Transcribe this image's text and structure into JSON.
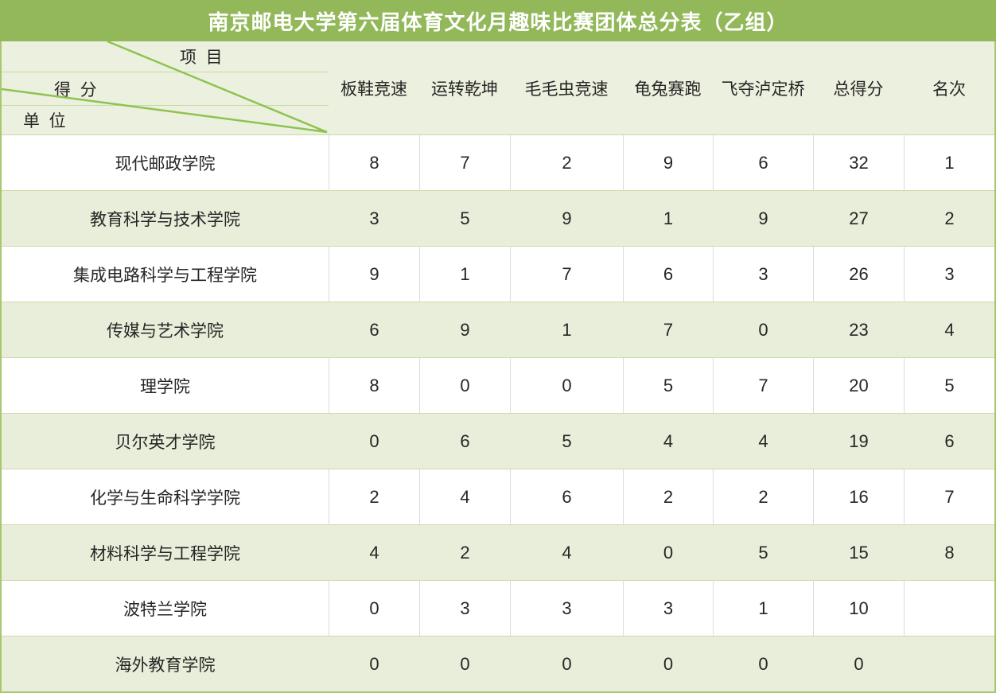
{
  "title": "南京邮电大学第六届体育文化月趣味比赛团体总分表（乙组）",
  "header_row": {
    "corner": {
      "top": "项  目",
      "middle": "得  分",
      "bottom": "单  位"
    },
    "columns": [
      "板鞋竞速",
      "运转乾坤",
      "毛毛虫竞速",
      "龟兔赛跑",
      "飞夺泸定桥",
      "总得分",
      "名次"
    ]
  },
  "body": {
    "rows": [
      {
        "unit": "现代邮政学院",
        "values": [
          "8",
          "7",
          "2",
          "9",
          "6",
          "32",
          "1"
        ]
      },
      {
        "unit": "教育科学与技术学院",
        "values": [
          "3",
          "5",
          "9",
          "1",
          "9",
          "27",
          "2"
        ]
      },
      {
        "unit": "集成电路科学与工程学院",
        "values": [
          "9",
          "1",
          "7",
          "6",
          "3",
          "26",
          "3"
        ]
      },
      {
        "unit": "传媒与艺术学院",
        "values": [
          "6",
          "9",
          "1",
          "7",
          "0",
          "23",
          "4"
        ]
      },
      {
        "unit": "理学院",
        "values": [
          "8",
          "0",
          "0",
          "5",
          "7",
          "20",
          "5"
        ]
      },
      {
        "unit": "贝尔英才学院",
        "values": [
          "0",
          "6",
          "5",
          "4",
          "4",
          "19",
          "6"
        ]
      },
      {
        "unit": "化学与生命科学学院",
        "values": [
          "2",
          "4",
          "6",
          "2",
          "2",
          "16",
          "7"
        ]
      },
      {
        "unit": "材料科学与工程学院",
        "values": [
          "4",
          "2",
          "4",
          "0",
          "5",
          "15",
          "8"
        ]
      },
      {
        "unit": "波特兰学院",
        "values": [
          "0",
          "3",
          "3",
          "3",
          "1",
          "10",
          ""
        ]
      },
      {
        "unit": "海外教育学院",
        "values": [
          "0",
          "0",
          "0",
          "0",
          "0",
          "0",
          ""
        ]
      }
    ]
  },
  "colors": {
    "title_bar_bg": "#92B859",
    "title_text": "#FFFFFF",
    "header_bg": "#ECF0DF",
    "alt_row_bg": "#E9EEDA",
    "outer_border": "#A6C870",
    "diagonal_line": "#8FC351",
    "row_divider": "#CBDCA6",
    "column_divider": "#DCDCDC",
    "text": "#262626"
  },
  "chart_data": {
    "type": "table",
    "title": "南京邮电大学第六届体育文化月趣味比赛团体总分表（乙组）",
    "corner_labels": {
      "columns_axis": "项 目",
      "value_axis": "得 分",
      "rows_axis": "单 位"
    },
    "columns": [
      "单位",
      "板鞋竞速",
      "运转乾坤",
      "毛毛虫竞速",
      "龟兔赛跑",
      "飞夺泸定桥",
      "总得分",
      "名次"
    ],
    "rows": [
      [
        "现代邮政学院",
        8,
        7,
        2,
        9,
        6,
        32,
        "1"
      ],
      [
        "教育科学与技术学院",
        3,
        5,
        9,
        1,
        9,
        27,
        "2"
      ],
      [
        "集成电路科学与工程学院",
        9,
        1,
        7,
        6,
        3,
        26,
        "3"
      ],
      [
        "传媒与艺术学院",
        6,
        9,
        1,
        7,
        0,
        23,
        "4"
      ],
      [
        "理学院",
        8,
        0,
        0,
        5,
        7,
        20,
        "5"
      ],
      [
        "贝尔英才学院",
        0,
        6,
        5,
        4,
        4,
        19,
        "6"
      ],
      [
        "化学与生命科学学院",
        2,
        4,
        6,
        2,
        2,
        16,
        "7"
      ],
      [
        "材料科学与工程学院",
        4,
        2,
        4,
        0,
        5,
        15,
        "8"
      ],
      [
        "波特兰学院",
        0,
        3,
        3,
        3,
        1,
        10,
        ""
      ],
      [
        "海外教育学院",
        0,
        0,
        0,
        0,
        0,
        0,
        ""
      ]
    ],
    "layout": {
      "zebra_striping": true,
      "alternating_row_colors": [
        "#FFFFFF",
        "#E9EEDA"
      ],
      "diagonal_split_header": true
    }
  }
}
